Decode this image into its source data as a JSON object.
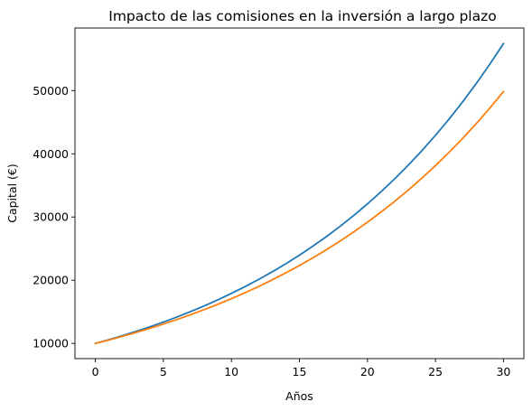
{
  "chart_data": {
    "type": "line",
    "title": "Impacto de las comisiones en la inversión a largo plazo",
    "xlabel": "Años",
    "ylabel": "Capital (€)",
    "xlim": [
      -1.5,
      31.5
    ],
    "ylim": [
      7600,
      59900
    ],
    "grid": false,
    "x_ticks": [
      0,
      5,
      10,
      15,
      20,
      25,
      30
    ],
    "x_tick_labels": [
      "0",
      "5",
      "10",
      "15",
      "20",
      "25",
      "30"
    ],
    "y_ticks": [
      10000,
      20000,
      30000,
      40000,
      50000
    ],
    "y_tick_labels": [
      "10000",
      "20000",
      "30000",
      "40000",
      "50000"
    ],
    "x": [
      0,
      1,
      2,
      3,
      4,
      5,
      6,
      7,
      8,
      9,
      10,
      11,
      12,
      13,
      14,
      15,
      16,
      17,
      18,
      19,
      20,
      21,
      22,
      23,
      24,
      25,
      26,
      27,
      28,
      29,
      30
    ],
    "series": [
      {
        "color": "#1f77b4",
        "values": [
          10000,
          10600,
          11236,
          11910,
          12625,
          13382,
          14185,
          15036,
          15938,
          16895,
          17908,
          18983,
          20122,
          21329,
          22609,
          23966,
          25404,
          26928,
          28543,
          30256,
          32071,
          33996,
          36035,
          38197,
          40489,
          42919,
          45494,
          48223,
          51117,
          54184,
          57435
        ]
      },
      {
        "color": "#ff7f0e",
        "values": [
          10000,
          10550,
          11130,
          11742,
          12388,
          13070,
          13788,
          14547,
          15347,
          16191,
          17081,
          18021,
          19012,
          20058,
          21161,
          22325,
          23553,
          24848,
          26215,
          27656,
          29178,
          30782,
          32475,
          34262,
          36146,
          38134,
          40231,
          42444,
          44778,
          47241,
          49839
        ]
      }
    ]
  }
}
